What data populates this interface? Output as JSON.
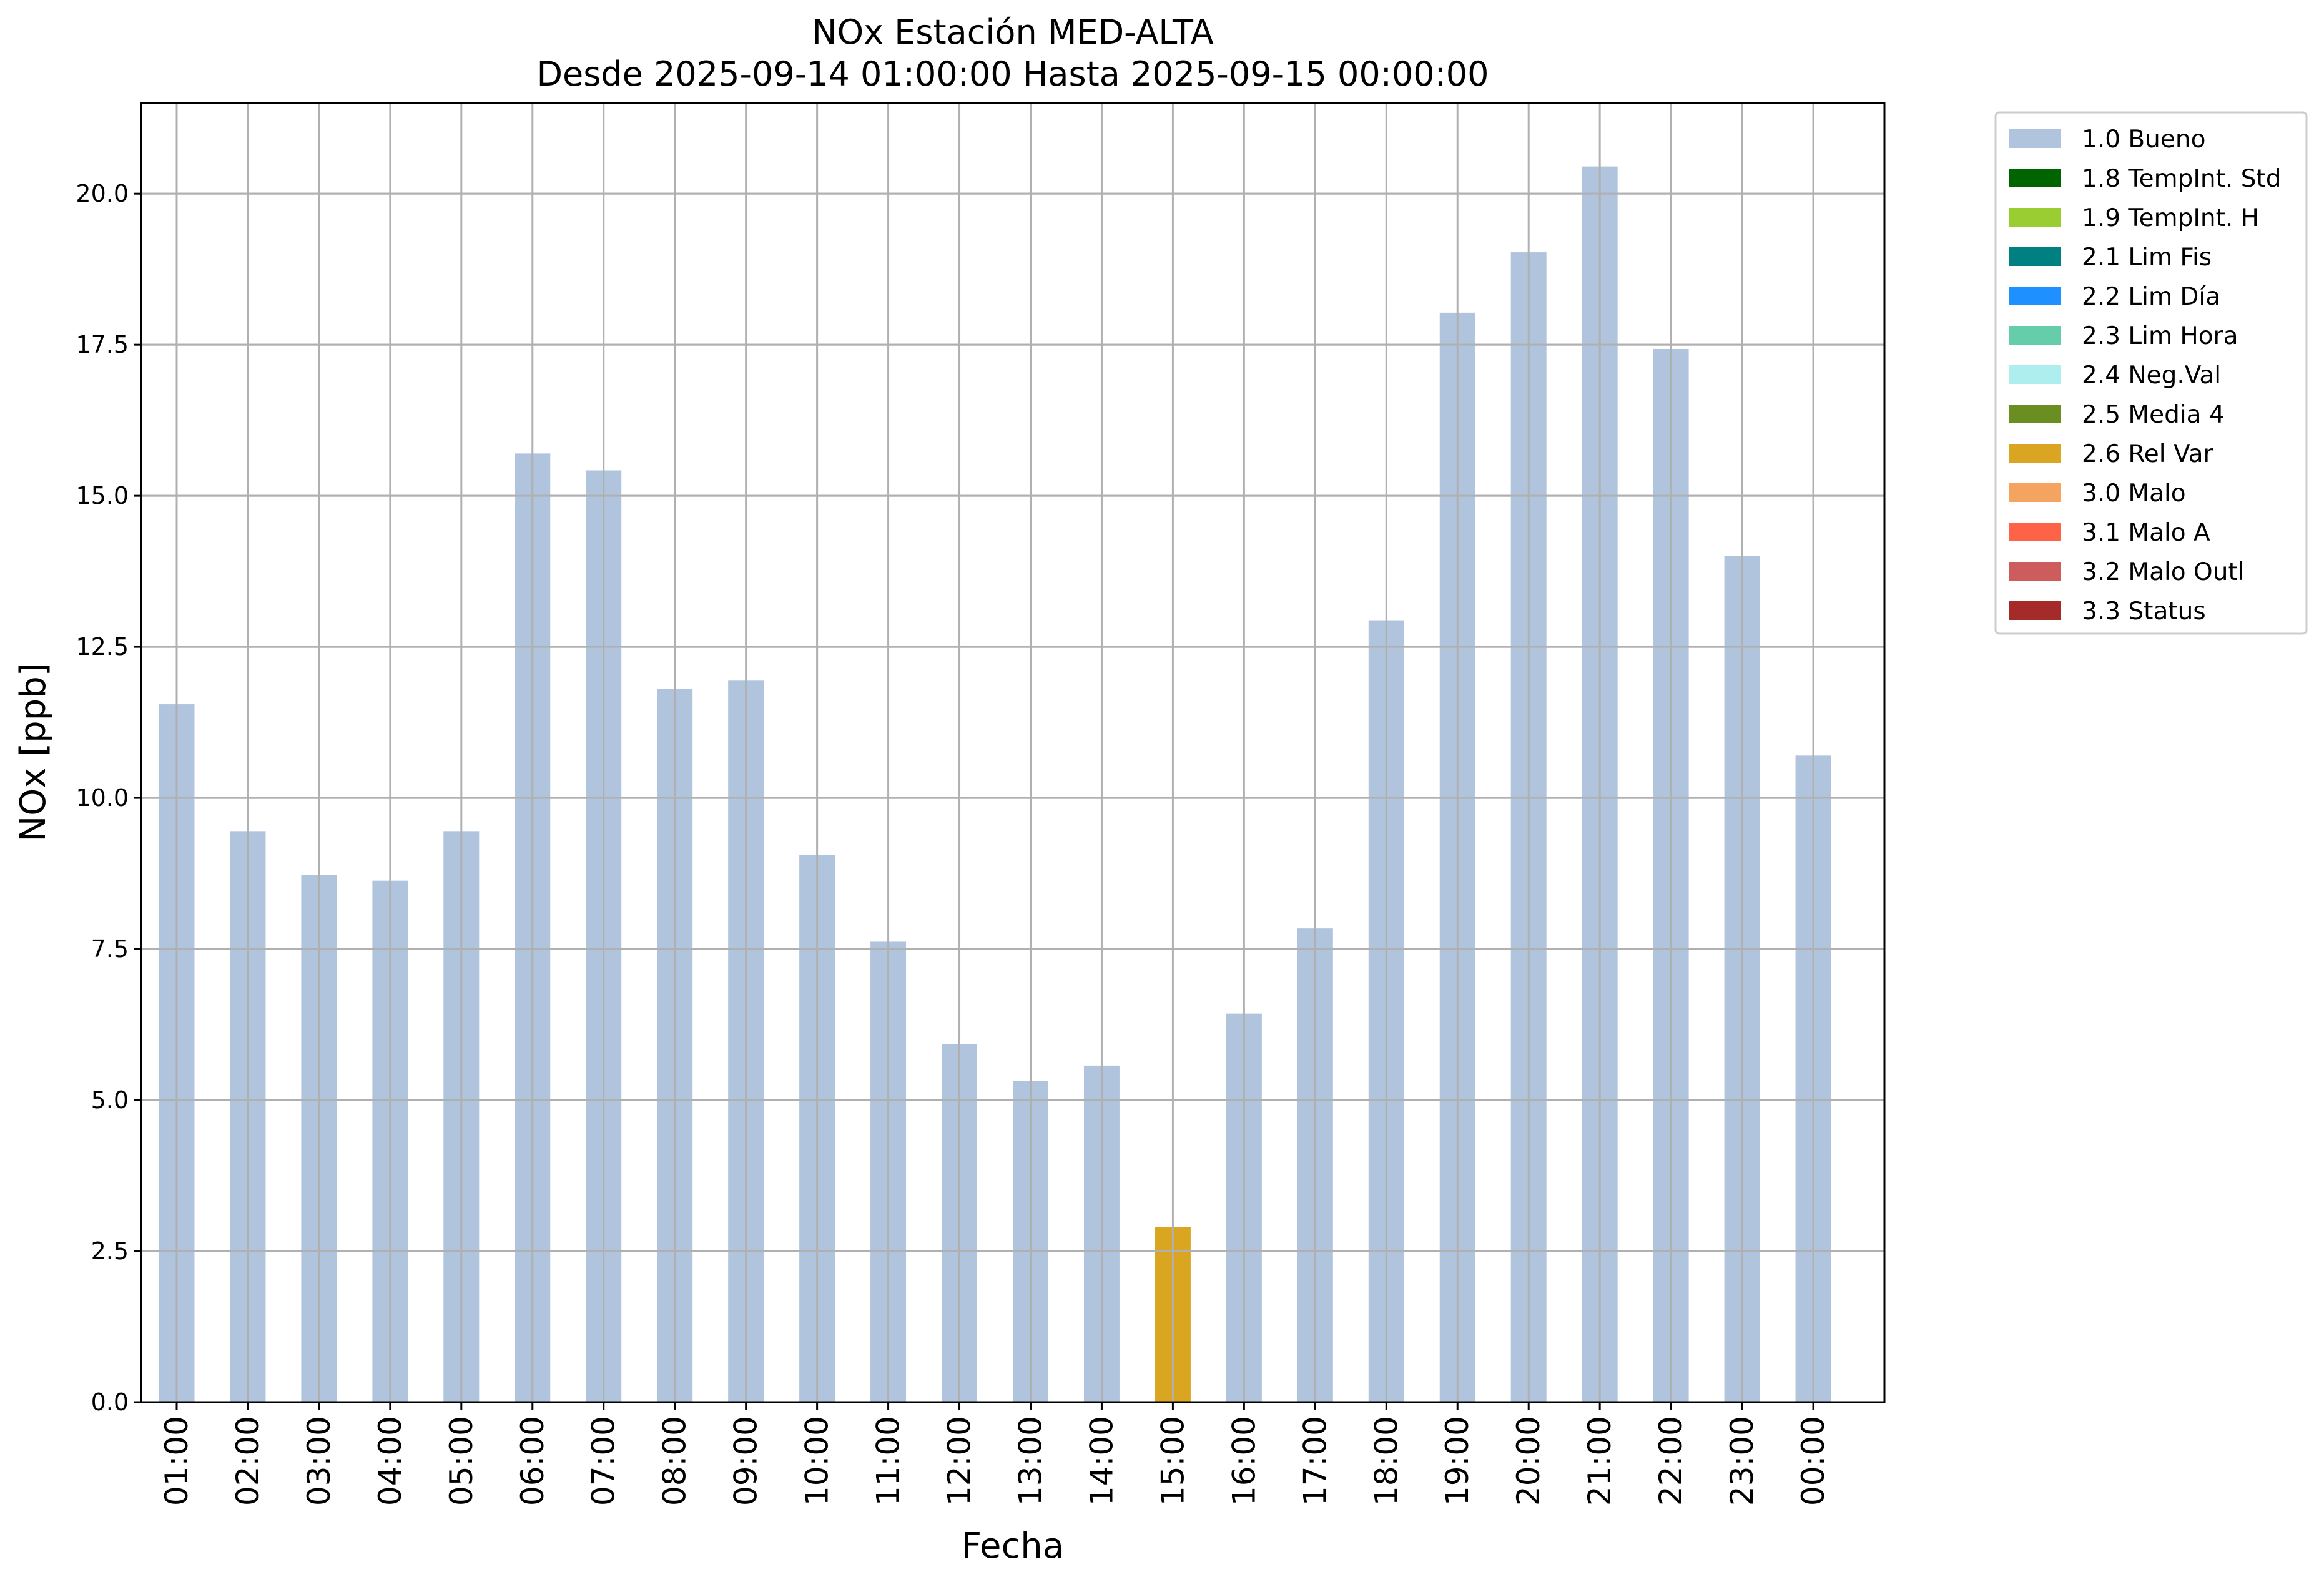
{
  "chart_data": {
    "type": "bar",
    "title": "NOx Estación MED-ALTA",
    "subtitle": "Desde 2025-09-14 01:00:00 Hasta 2025-09-15 00:00:00",
    "xlabel": "Fecha",
    "ylabel": "NOx [ppb]",
    "ylim": [
      0,
      21.5
    ],
    "yticks": [
      "0.0",
      "2.5",
      "5.0",
      "7.5",
      "10.0",
      "12.5",
      "15.0",
      "17.5",
      "20.0"
    ],
    "grid": true,
    "legend_position": "outside-right",
    "categories": [
      "01:00",
      "02:00",
      "03:00",
      "04:00",
      "05:00",
      "06:00",
      "07:00",
      "08:00",
      "09:00",
      "10:00",
      "11:00",
      "12:00",
      "13:00",
      "14:00",
      "15:00",
      "16:00",
      "17:00",
      "18:00",
      "19:00",
      "20:00",
      "21:00",
      "22:00",
      "23:00",
      "00:00"
    ],
    "values": [
      11.55,
      9.45,
      8.72,
      8.63,
      9.45,
      15.7,
      15.42,
      11.8,
      11.94,
      9.06,
      7.62,
      5.93,
      5.32,
      5.57,
      2.9,
      6.43,
      7.84,
      12.94,
      18.03,
      19.03,
      20.45,
      17.43,
      14.0,
      10.7
    ],
    "flags": [
      "1.0 Bueno",
      "1.0 Bueno",
      "1.0 Bueno",
      "1.0 Bueno",
      "1.0 Bueno",
      "1.0 Bueno",
      "1.0 Bueno",
      "1.0 Bueno",
      "1.0 Bueno",
      "1.0 Bueno",
      "1.0 Bueno",
      "1.0 Bueno",
      "1.0 Bueno",
      "1.0 Bueno",
      "2.6 Rel Var",
      "1.0 Bueno",
      "1.0 Bueno",
      "1.0 Bueno",
      "1.0 Bueno",
      "1.0 Bueno",
      "1.0 Bueno",
      "1.0 Bueno",
      "1.0 Bueno",
      "1.0 Bueno"
    ],
    "legend": [
      {
        "label": "1.0 Bueno",
        "color": "#b0c4de"
      },
      {
        "label": "1.8 TempInt. Std",
        "color": "#006400"
      },
      {
        "label": "1.9 TempInt. H",
        "color": "#9acd32"
      },
      {
        "label": "2.1 Lim Fis",
        "color": "#008080"
      },
      {
        "label": "2.2 Lim Día",
        "color": "#1e90ff"
      },
      {
        "label": "2.3 Lim Hora",
        "color": "#66cdaa"
      },
      {
        "label": "2.4 Neg.Val",
        "color": "#afeeee"
      },
      {
        "label": "2.5 Media 4",
        "color": "#6b8e23"
      },
      {
        "label": "2.6 Rel Var",
        "color": "#daa520"
      },
      {
        "label": "3.0 Malo",
        "color": "#f4a460"
      },
      {
        "label": "3.1 Malo A",
        "color": "#ff6347"
      },
      {
        "label": "3.2 Malo Outl",
        "color": "#cd5c5c"
      },
      {
        "label": "3.3 Status",
        "color": "#a52a2a"
      }
    ]
  }
}
